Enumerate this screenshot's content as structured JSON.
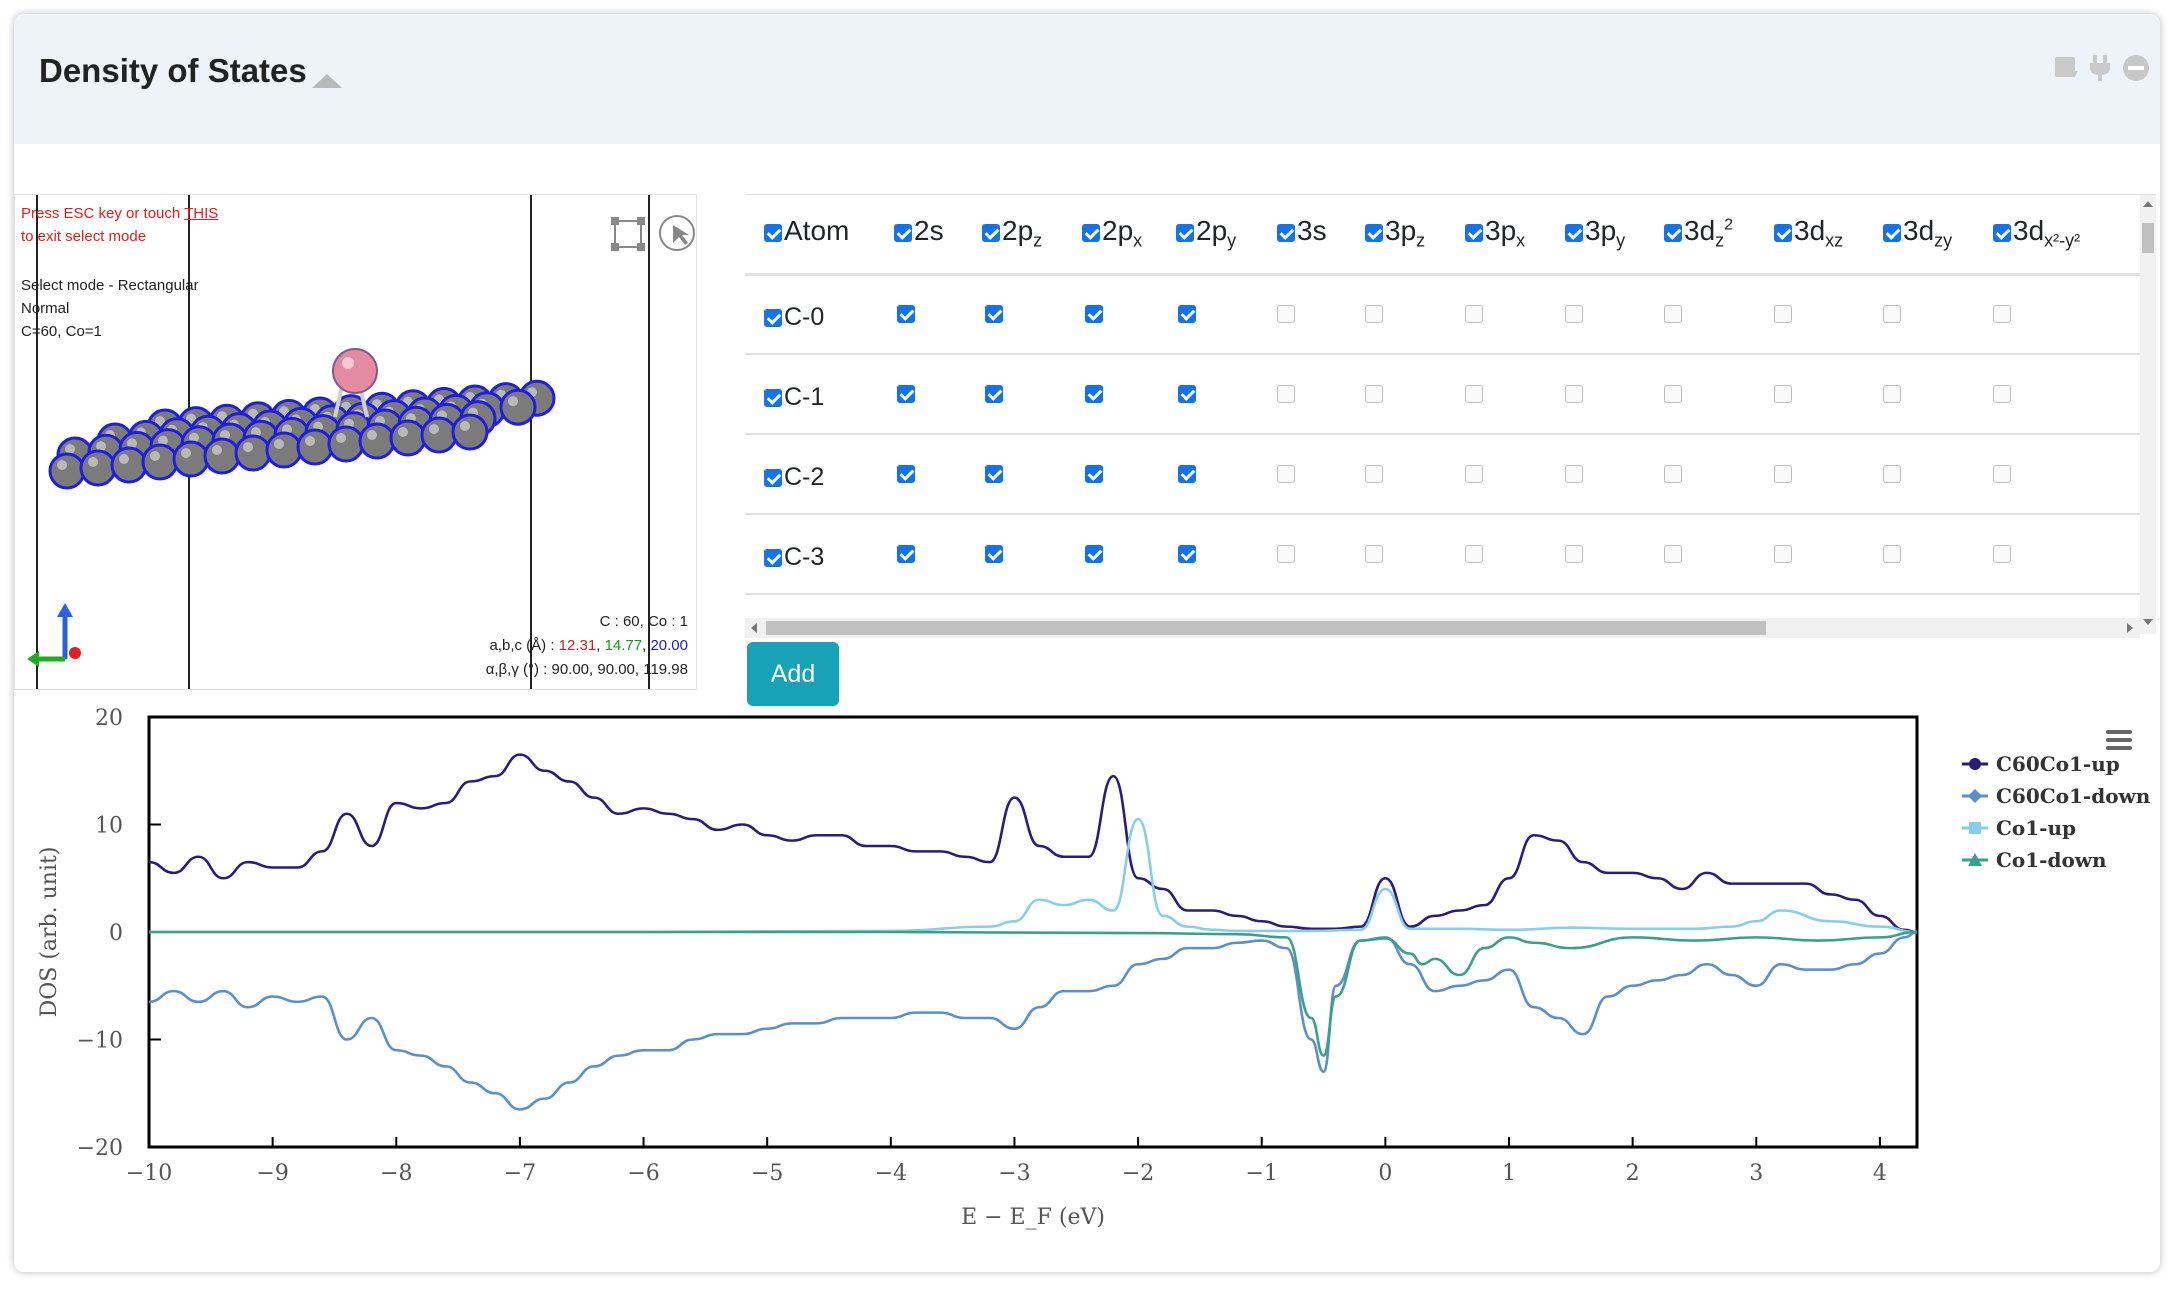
{
  "header": {
    "title": "Density of States"
  },
  "viewer": {
    "esc_prefix": "Press ESC key or touch ",
    "esc_link": "THIS",
    "esc_suffix": "to exit select mode",
    "mode_line": "Select mode - Rectangular",
    "mode_sub": "Normal",
    "composition": "C=60, Co=1",
    "counts": "C : 60, Co : 1",
    "abc_label": "a,b,c (Å) : ",
    "a": "12.31",
    "b": "14.77",
    "c": "20.00",
    "angles_label": "α,β,γ (°) : ",
    "angles": "90.00, 90.00, 119.98",
    "colors": {
      "a": "#d02020",
      "b": "#1a9a1a",
      "c": "#2020b0"
    }
  },
  "table": {
    "headers": [
      {
        "base": "Atom",
        "sub": "",
        "sup": ""
      },
      {
        "base": "2s",
        "sub": "",
        "sup": ""
      },
      {
        "base": "2p",
        "sub": "z",
        "sup": ""
      },
      {
        "base": "2p",
        "sub": "x",
        "sup": ""
      },
      {
        "base": "2p",
        "sub": "y",
        "sup": ""
      },
      {
        "base": "3s",
        "sub": "",
        "sup": ""
      },
      {
        "base": "3p",
        "sub": "z",
        "sup": ""
      },
      {
        "base": "3p",
        "sub": "x",
        "sup": ""
      },
      {
        "base": "3p",
        "sub": "y",
        "sup": ""
      },
      {
        "base": "3d",
        "sub": "z",
        "sup": "2"
      },
      {
        "base": "3d",
        "sub": "xz",
        "sup": ""
      },
      {
        "base": "3d",
        "sub": "zy",
        "sup": ""
      },
      {
        "base": "3d",
        "sub": "x²-y²",
        "sup": ""
      }
    ],
    "rows": [
      {
        "label": "C-0",
        "checks": [
          true,
          true,
          true,
          true,
          false,
          false,
          false,
          false,
          false,
          false,
          false,
          false
        ]
      },
      {
        "label": "C-1",
        "checks": [
          true,
          true,
          true,
          true,
          false,
          false,
          false,
          false,
          false,
          false,
          false,
          false
        ]
      },
      {
        "label": "C-2",
        "checks": [
          true,
          true,
          true,
          true,
          false,
          false,
          false,
          false,
          false,
          false,
          false,
          false
        ]
      },
      {
        "label": "C-3",
        "checks": [
          true,
          true,
          true,
          true,
          false,
          false,
          false,
          false,
          false,
          false,
          false,
          false
        ]
      }
    ],
    "add_label": "Add"
  },
  "chart_data": {
    "type": "line",
    "title": "",
    "xlabel": "E − E_F (eV)",
    "ylabel": "DOS (arb. unit)",
    "xlim": [
      -10,
      4.3
    ],
    "ylim": [
      -20,
      20
    ],
    "xticks": [
      -10,
      -9,
      -8,
      -7,
      -6,
      -5,
      -4,
      -3,
      -2,
      -1,
      0,
      1,
      2,
      3,
      4
    ],
    "yticks": [
      20,
      10,
      0,
      -10,
      -20
    ],
    "legend_position": "right",
    "series": [
      {
        "name": "C60Co1-up",
        "color": "#2b1c7a",
        "marker": "circle",
        "x": [
          -10,
          -9.8,
          -9.6,
          -9.4,
          -9.2,
          -9.0,
          -8.8,
          -8.6,
          -8.4,
          -8.2,
          -8.0,
          -7.8,
          -7.6,
          -7.4,
          -7.2,
          -7.0,
          -6.8,
          -6.6,
          -6.4,
          -6.2,
          -6.0,
          -5.8,
          -5.6,
          -5.4,
          -5.2,
          -5.0,
          -4.8,
          -4.6,
          -4.4,
          -4.2,
          -4.0,
          -3.8,
          -3.6,
          -3.4,
          -3.2,
          -3.0,
          -2.8,
          -2.6,
          -2.4,
          -2.2,
          -2.0,
          -1.8,
          -1.6,
          -1.4,
          -1.2,
          -1.0,
          -0.8,
          -0.6,
          -0.4,
          -0.2,
          0.0,
          0.2,
          0.4,
          0.6,
          0.8,
          1.0,
          1.2,
          1.4,
          1.6,
          1.8,
          2.0,
          2.2,
          2.4,
          2.6,
          2.8,
          3.0,
          3.2,
          3.4,
          3.6,
          3.8,
          4.0,
          4.2,
          4.3
        ],
        "y": [
          6.5,
          5.5,
          7,
          5,
          6.5,
          6,
          6,
          7.5,
          11,
          8,
          12,
          11.5,
          12,
          14,
          14.5,
          16.5,
          15,
          14,
          12.5,
          11,
          11.5,
          11,
          10.5,
          9.5,
          10,
          9,
          8.5,
          9,
          9,
          8,
          8,
          7.5,
          7.5,
          7,
          6.5,
          12.5,
          8,
          7,
          7,
          14.5,
          5,
          4,
          2,
          2,
          1.5,
          1,
          0.5,
          0.3,
          0.3,
          0.5,
          5,
          0.5,
          1.5,
          2,
          2.5,
          5,
          9,
          8.5,
          6.5,
          5.5,
          5.5,
          5,
          4,
          5.5,
          4.5,
          4.5,
          4.5,
          4.5,
          3.5,
          3,
          1.5,
          0.2,
          0
        ]
      },
      {
        "name": "C60Co1-down",
        "color": "#5b8fc9",
        "marker": "diamond",
        "x": [
          -10,
          -9.8,
          -9.6,
          -9.4,
          -9.2,
          -9.0,
          -8.8,
          -8.6,
          -8.4,
          -8.2,
          -8.0,
          -7.8,
          -7.6,
          -7.4,
          -7.2,
          -7.0,
          -6.8,
          -6.6,
          -6.4,
          -6.2,
          -6.0,
          -5.8,
          -5.6,
          -5.4,
          -5.2,
          -5.0,
          -4.8,
          -4.6,
          -4.4,
          -4.2,
          -4.0,
          -3.8,
          -3.6,
          -3.4,
          -3.2,
          -3.0,
          -2.8,
          -2.6,
          -2.4,
          -2.2,
          -2.0,
          -1.8,
          -1.6,
          -1.4,
          -1.2,
          -1.0,
          -0.8,
          -0.6,
          -0.5,
          -0.4,
          -0.2,
          0.0,
          0.2,
          0.4,
          0.6,
          0.8,
          1.0,
          1.2,
          1.4,
          1.6,
          1.8,
          2.0,
          2.2,
          2.4,
          2.6,
          2.8,
          3.0,
          3.2,
          3.4,
          3.6,
          3.8,
          4.0,
          4.2,
          4.3
        ],
        "y": [
          -6.5,
          -5.5,
          -6.5,
          -5.5,
          -7,
          -6,
          -6.5,
          -6,
          -10,
          -8,
          -11,
          -11.5,
          -12.5,
          -14,
          -15,
          -16.5,
          -15.5,
          -14,
          -12.5,
          -11.5,
          -11,
          -11,
          -10,
          -9.5,
          -9.5,
          -9,
          -8.5,
          -8.5,
          -8,
          -8,
          -8,
          -7.5,
          -7.5,
          -8,
          -8,
          -9,
          -7,
          -5.5,
          -5.5,
          -5,
          -3,
          -2.5,
          -1.5,
          -1.5,
          -1,
          -0.8,
          -1.5,
          -10,
          -13,
          -5,
          -0.8,
          -0.5,
          -3,
          -5.5,
          -5,
          -4.5,
          -3.5,
          -7,
          -8,
          -9.5,
          -6,
          -5,
          -4.5,
          -4,
          -3,
          -4,
          -5,
          -3,
          -3.5,
          -3.5,
          -3,
          -2,
          -0.5,
          0
        ]
      },
      {
        "name": "Co1-up",
        "color": "#87ceeb",
        "marker": "square",
        "x": [
          -10,
          -8,
          -6,
          -4,
          -3.2,
          -3.0,
          -2.8,
          -2.6,
          -2.4,
          -2.2,
          -2.0,
          -1.8,
          -1.6,
          -1.4,
          -1.2,
          -1.0,
          -0.6,
          -0.2,
          0.0,
          0.2,
          0.6,
          1.0,
          1.5,
          2.0,
          2.5,
          2.8,
          3.0,
          3.2,
          3.6,
          4.0,
          4.3
        ],
        "y": [
          0,
          0,
          0,
          0.1,
          0.5,
          1,
          3,
          2.5,
          3,
          2,
          10.5,
          1.5,
          0.5,
          0.2,
          0.1,
          0.1,
          0.1,
          0.2,
          4,
          0.3,
          0.3,
          0.2,
          0.4,
          0.3,
          0.3,
          0.5,
          1,
          2,
          1,
          0.5,
          0
        ]
      },
      {
        "name": "Co1-down",
        "color": "#3aa08a",
        "marker": "triangle",
        "x": [
          -10,
          -8,
          -6,
          -4,
          -2,
          -1.2,
          -0.8,
          -0.6,
          -0.5,
          -0.4,
          -0.2,
          0.0,
          0.2,
          0.3,
          0.4,
          0.6,
          0.8,
          1.0,
          1.2,
          1.5,
          2.0,
          2.5,
          3.0,
          3.5,
          4.0,
          4.3
        ],
        "y": [
          0,
          0,
          0,
          0,
          -0.1,
          -0.2,
          -0.5,
          -8,
          -11.5,
          -6,
          -0.8,
          -0.6,
          -2,
          -3,
          -2.5,
          -4,
          -1.5,
          -0.5,
          -1,
          -1.5,
          -0.5,
          -0.8,
          -0.5,
          -0.8,
          -0.5,
          0
        ]
      }
    ]
  }
}
